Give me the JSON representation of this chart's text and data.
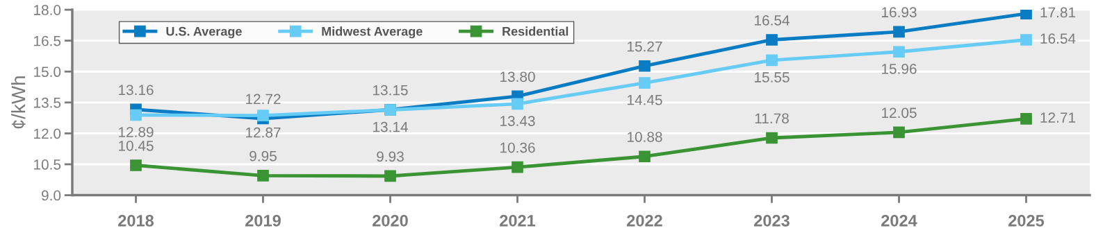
{
  "chart_data": {
    "type": "line",
    "ylabel": "¢/kWh",
    "categories": [
      "2018",
      "2019",
      "2020",
      "2021",
      "2022",
      "2023",
      "2024",
      "2025"
    ],
    "series": [
      {
        "name": "U.S. Average",
        "color": "#0a7cc4",
        "values": [
          13.16,
          12.72,
          13.15,
          13.8,
          15.27,
          16.54,
          16.93,
          17.81
        ],
        "value_labels": [
          "13.16",
          "12.72",
          "13.15",
          "13.80",
          "15.27",
          "16.54",
          "16.93",
          "17.81"
        ]
      },
      {
        "name": "Midwest Average",
        "color": "#66ccf5",
        "values": [
          12.89,
          12.87,
          13.14,
          13.43,
          14.45,
          15.55,
          15.96,
          16.54
        ],
        "value_labels": [
          "12.89",
          "12.87",
          "13.14",
          "13.43",
          "14.45",
          "15.55",
          "15.96",
          "16.54"
        ]
      },
      {
        "name": "Residential",
        "color": "#3a9434",
        "values": [
          10.45,
          9.95,
          9.93,
          10.36,
          10.88,
          11.78,
          12.05,
          12.71
        ],
        "value_labels": [
          "10.45",
          "9.95",
          "9.93",
          "10.36",
          "10.88",
          "11.78",
          "12.05",
          "12.71"
        ]
      }
    ],
    "ylim": [
      9.0,
      18.0
    ],
    "yticks": [
      {
        "value": 9.0,
        "label": "9.0"
      },
      {
        "value": 10.5,
        "label": "10.5"
      },
      {
        "value": 12.0,
        "label": "12.0"
      },
      {
        "value": 13.5,
        "label": "13.5"
      },
      {
        "value": 15.0,
        "label": "15.0"
      },
      {
        "value": 16.5,
        "label": "16.5"
      },
      {
        "value": 18.0,
        "label": "18.0"
      }
    ],
    "grid": "y",
    "legend": "top left",
    "marker": "square",
    "line_style": "solid"
  }
}
